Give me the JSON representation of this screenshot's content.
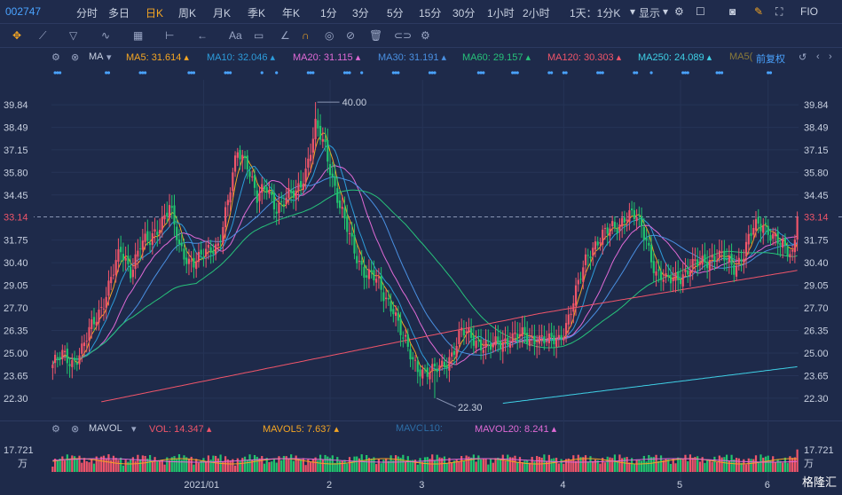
{
  "toolbar": {
    "code": "002747",
    "periods": [
      "分时",
      "多日",
      "日K",
      "周K",
      "月K",
      "季K",
      "年K",
      "1分",
      "3分",
      "5分",
      "15分",
      "30分",
      "1小时",
      "2小时"
    ],
    "active_period": "日K",
    "range_select": "1天：1分K",
    "display": "显示",
    "right_label": "FIO"
  },
  "tools": {
    "text_tool": "Aa"
  },
  "ma_legend": {
    "title": "MA",
    "items": [
      {
        "label": "MA5: 31.614",
        "color": "#f5a623"
      },
      {
        "label": "MA10: 32.046",
        "color": "#2d9cdb"
      },
      {
        "label": "MA20: 31.115",
        "color": "#e06ad6"
      },
      {
        "label": "MA30: 31.191",
        "color": "#4a90e2"
      },
      {
        "label": "MA60: 29.157",
        "color": "#27c27a"
      },
      {
        "label": "MA120: 30.303",
        "color": "#f0556a"
      },
      {
        "label": "MA250: 24.089",
        "color": "#3fd0e6"
      },
      {
        "label": "MA5(",
        "color": "#8a7a3a"
      }
    ],
    "adjust": "前复权"
  },
  "vol_legend": {
    "title": "MAVOL",
    "items": [
      {
        "label": "VOL: 14.347",
        "color": "#f0556a"
      },
      {
        "label": "MAVOL5: 7.637",
        "color": "#f5a623"
      },
      {
        "label": "MAVOL10:",
        "color": "#2d6fa8"
      },
      {
        "label": "MAVOL20: 8.241",
        "color": "#e06ad6"
      }
    ]
  },
  "footer": {
    "logo": "格隆汇"
  },
  "chart_data": {
    "type": "candlestick",
    "y_ticks": [
      "39.84",
      "38.49",
      "37.15",
      "35.80",
      "34.45",
      "33.14",
      "31.75",
      "30.40",
      "29.05",
      "27.70",
      "26.35",
      "25.00",
      "23.65",
      "22.30"
    ],
    "ylim": [
      21.5,
      40.8
    ],
    "last_price": 33.14,
    "last_price_label": "33.14",
    "annotations": [
      {
        "label": "40.00",
        "value": 40.0
      },
      {
        "label": "22.30",
        "value": 22.3
      }
    ],
    "x_ticks": [
      "2021/01",
      "2",
      "3",
      "4",
      "5",
      "6"
    ],
    "volume_max_label": "17.721",
    "volume_unit": "万",
    "series": [
      {
        "name": "MA5",
        "color": "#f5a623"
      },
      {
        "name": "MA10",
        "color": "#2d9cdb"
      },
      {
        "name": "MA20",
        "color": "#e06ad6"
      },
      {
        "name": "MA30",
        "color": "#4a90e2"
      },
      {
        "name": "MA60",
        "color": "#27c27a"
      },
      {
        "name": "MA120",
        "color": "#f0556a"
      },
      {
        "name": "MA250",
        "color": "#3fd0e6"
      }
    ],
    "anchors": [
      [
        0,
        24.3
      ],
      [
        4,
        24.8
      ],
      [
        8,
        24.5
      ],
      [
        12,
        25.2
      ],
      [
        16,
        26.5
      ],
      [
        20,
        27.8
      ],
      [
        24,
        29.5
      ],
      [
        28,
        31.0
      ],
      [
        32,
        30.0
      ],
      [
        36,
        31.5
      ],
      [
        40,
        31.6
      ],
      [
        44,
        32.8
      ],
      [
        48,
        33.8
      ],
      [
        52,
        31.2
      ],
      [
        56,
        30.6
      ],
      [
        60,
        30.6
      ],
      [
        64,
        31.0
      ],
      [
        68,
        31.6
      ],
      [
        72,
        34.0
      ],
      [
        76,
        37.0
      ],
      [
        80,
        36.5
      ],
      [
        84,
        34.2
      ],
      [
        88,
        34.8
      ],
      [
        92,
        33.8
      ],
      [
        96,
        34.2
      ],
      [
        100,
        34.5
      ],
      [
        104,
        36.0
      ],
      [
        108,
        38.5
      ],
      [
        112,
        37.2
      ],
      [
        116,
        35.0
      ],
      [
        120,
        32.8
      ],
      [
        124,
        31.0
      ],
      [
        128,
        30.0
      ],
      [
        132,
        29.5
      ],
      [
        136,
        28.4
      ],
      [
        140,
        27.8
      ],
      [
        144,
        25.8
      ],
      [
        148,
        24.5
      ],
      [
        152,
        24.0
      ],
      [
        156,
        23.8
      ],
      [
        160,
        24.2
      ],
      [
        164,
        25.0
      ],
      [
        168,
        26.2
      ],
      [
        172,
        26.0
      ],
      [
        176,
        25.6
      ],
      [
        180,
        25.3
      ],
      [
        184,
        25.6
      ],
      [
        188,
        26.0
      ],
      [
        192,
        26.0
      ],
      [
        196,
        25.8
      ],
      [
        200,
        26.0
      ],
      [
        204,
        25.6
      ],
      [
        208,
        25.8
      ],
      [
        212,
        27.2
      ],
      [
        216,
        29.0
      ],
      [
        220,
        31.0
      ],
      [
        224,
        31.8
      ],
      [
        228,
        32.2
      ],
      [
        232,
        32.6
      ],
      [
        236,
        33.4
      ],
      [
        240,
        33.0
      ],
      [
        244,
        31.8
      ],
      [
        248,
        29.8
      ],
      [
        252,
        29.2
      ],
      [
        256,
        29.6
      ],
      [
        260,
        29.8
      ],
      [
        264,
        30.2
      ],
      [
        268,
        30.6
      ],
      [
        272,
        30.8
      ],
      [
        276,
        30.6
      ],
      [
        280,
        30.2
      ],
      [
        284,
        31.0
      ],
      [
        288,
        32.4
      ],
      [
        292,
        32.8
      ],
      [
        296,
        32.0
      ],
      [
        300,
        31.2
      ],
      [
        304,
        31.0
      ],
      [
        306,
        33.14
      ]
    ]
  }
}
